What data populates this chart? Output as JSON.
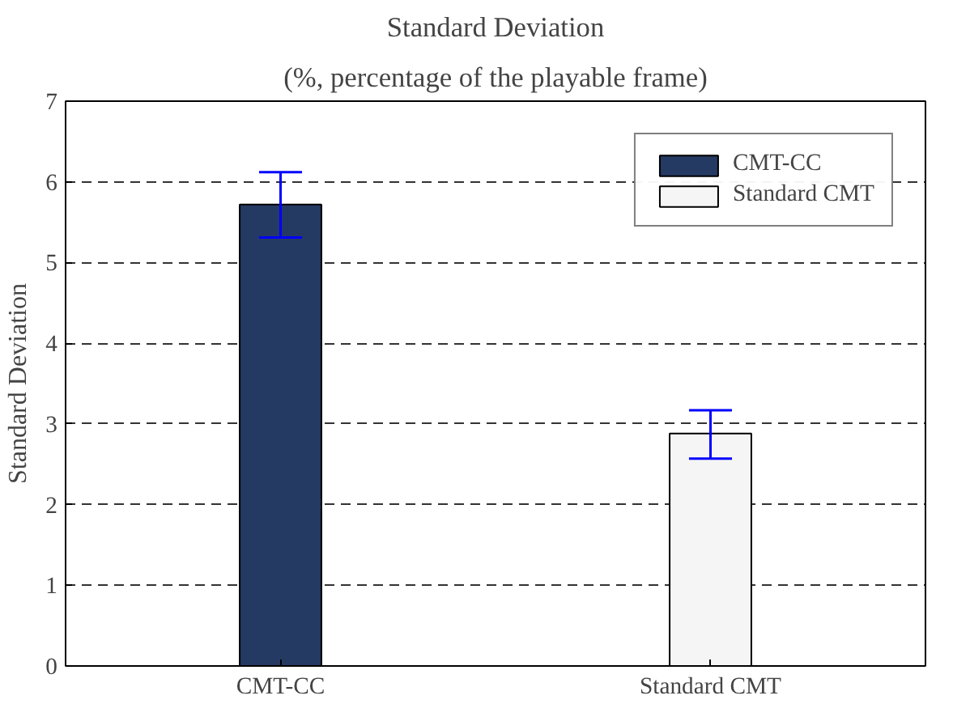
{
  "chart_data": {
    "type": "bar",
    "title": "Standard Deviation",
    "subtitle": "(%, percentage of the playable frame)",
    "ylabel": "Standard Deviation",
    "categories": [
      "CMT-CC",
      "Standard CMT"
    ],
    "series": [
      {
        "name": "CMT-CC",
        "color": "#253a63",
        "values": [
          5.72,
          null
        ],
        "errors": [
          [
            5.31,
            6.12
          ],
          null
        ]
      },
      {
        "name": "Standard CMT",
        "color": "#f5f5f5",
        "values": [
          null,
          2.88
        ],
        "errors": [
          null,
          [
            2.57,
            3.17
          ]
        ]
      }
    ],
    "ylim": [
      0,
      7
    ],
    "yticks": [
      0,
      1,
      2,
      3,
      4,
      5,
      6,
      7
    ],
    "grid": "y",
    "legend": "top right"
  }
}
